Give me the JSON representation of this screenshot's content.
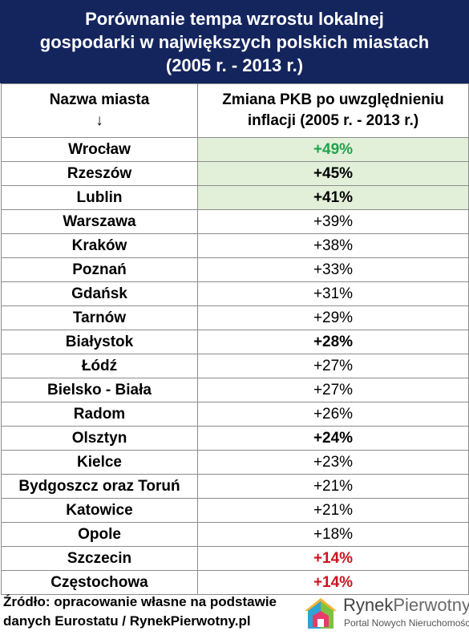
{
  "title": {
    "line1": "Porównanie tempa wzrostu lokalnej",
    "line2": "gospodarki w największych polskich miastach",
    "line3": "(2005 r. - 2013 r.)"
  },
  "table": {
    "col1_header": "Nazwa miasta",
    "col1_arrow": "↓",
    "col2_header_line1": "Zmiana PKB po uwzględnieniu",
    "col2_header_line2": "inflacji (2005 r. - 2013 r.)",
    "rows": [
      {
        "city": "Wrocław",
        "change": "+49%"
      },
      {
        "city": "Rzeszów",
        "change": "+45%"
      },
      {
        "city": "Lublin",
        "change": "+41%"
      },
      {
        "city": "Warszawa",
        "change": "+39%"
      },
      {
        "city": "Kraków",
        "change": "+38%"
      },
      {
        "city": "Poznań",
        "change": "+33%"
      },
      {
        "city": "Gdańsk",
        "change": "+31%"
      },
      {
        "city": "Tarnów",
        "change": "+29%"
      },
      {
        "city": "Białystok",
        "change": "+28%"
      },
      {
        "city": "Łódź",
        "change": "+27%"
      },
      {
        "city": "Bielsko - Biała",
        "change": "+27%"
      },
      {
        "city": "Radom",
        "change": "+26%"
      },
      {
        "city": "Olsztyn",
        "change": "+24%"
      },
      {
        "city": "Kielce",
        "change": "+23%"
      },
      {
        "city": "Bydgoszcz oraz Toruń",
        "change": "+21%"
      },
      {
        "city": "Katowice",
        "change": "+21%"
      },
      {
        "city": "Opole",
        "change": "+18%"
      },
      {
        "city": "Szczecin",
        "change": "+14%"
      },
      {
        "city": "Częstochowa",
        "change": "+14%"
      }
    ]
  },
  "source": {
    "line1": "Źródło: opracowanie własne na podstawie",
    "line2": "danych Eurostatu / RynekPierwotny.pl"
  },
  "logo": {
    "brand_a": "Rynek",
    "brand_b": "Pierwotny",
    "tagline": "Portal Nowych Nieruchomości"
  },
  "colors": {
    "header_bg": "#14255e",
    "highlight_bg": "#e2efd9",
    "green": "#1fa34a",
    "red": "#c8161d"
  }
}
